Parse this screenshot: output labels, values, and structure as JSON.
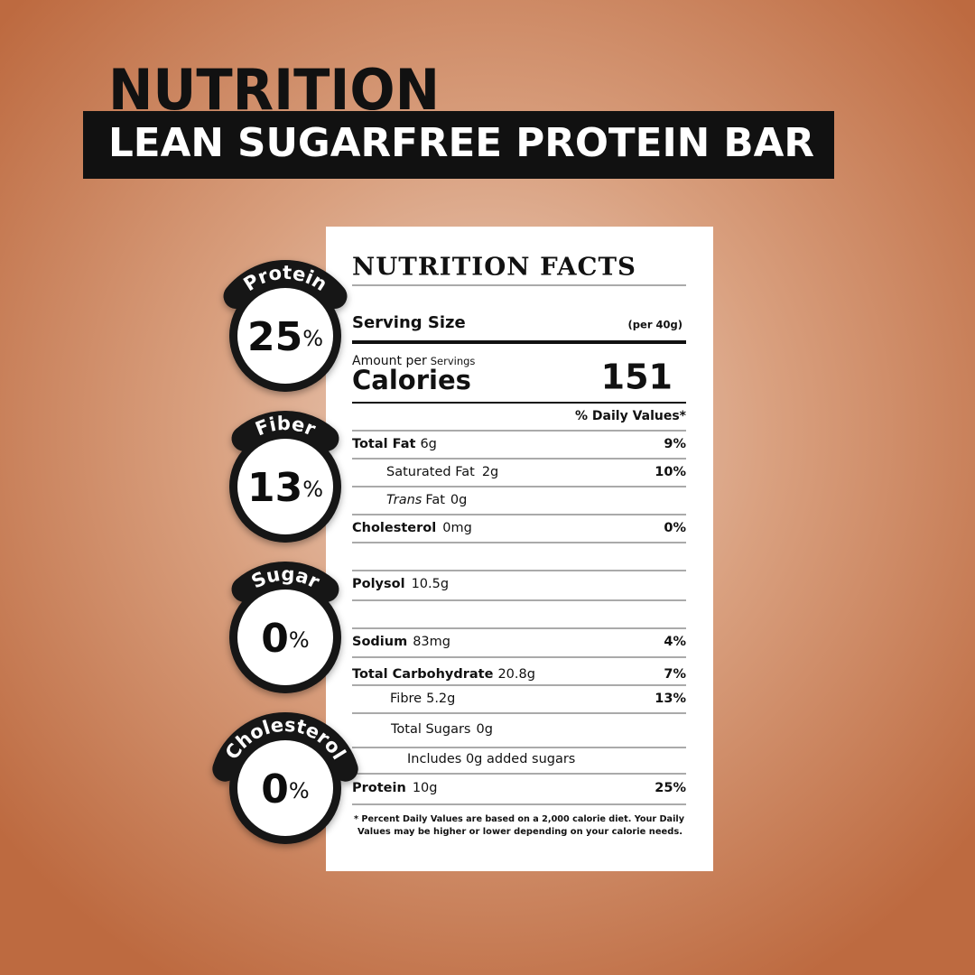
{
  "header": {
    "title": "NUTRITION",
    "subtitle": "LEAN SUGARFREE PROTEIN BAR"
  },
  "badges": [
    {
      "label": "Protein",
      "value": "25",
      "unit": "%"
    },
    {
      "label": "Fiber",
      "value": "13",
      "unit": "%"
    },
    {
      "label": "Sugar",
      "value": "0",
      "unit": "%"
    },
    {
      "label": "Cholesterol",
      "value": "0",
      "unit": "%"
    }
  ],
  "label": {
    "title": "NUTRITION FACTS",
    "serving_size": "Serving Size",
    "serving_amount": "(per 40g)",
    "amount_per": "Amount per",
    "servings": "Servings",
    "calories": "Calories",
    "calories_value": "151",
    "daily_values": "% Daily Values*",
    "rows": [
      {
        "name": "Total Fat",
        "amount": "6g",
        "dv": "9%"
      },
      {
        "name": "Saturated Fat",
        "amount": "2g",
        "dv": "10%"
      },
      {
        "name_italic": "Trans",
        "name": "Fat",
        "amount": "0g"
      },
      {
        "name": "Cholesterol",
        "amount": "0mg",
        "dv": "0%"
      },
      {
        "name": "Polysol",
        "amount": "10.5g"
      },
      {
        "name": "Sodium",
        "amount": "83mg",
        "dv": "4%"
      },
      {
        "name": "Total Carbohydrate",
        "amount": "20.8g",
        "dv": "7%"
      },
      {
        "name": "Fibre",
        "amount": "5.2g",
        "dv": "13%"
      },
      {
        "name": "Total Sugars",
        "amount": "0g"
      },
      {
        "text": "Includes 0g added sugars"
      },
      {
        "name": "Protein",
        "amount": "10g",
        "dv": "25%"
      }
    ],
    "footnote": [
      "* Percent Daily Values are based on a 2,000 calorie diet. Your Daily",
      "Values may be higher or lower depending on your calorie needs."
    ]
  }
}
